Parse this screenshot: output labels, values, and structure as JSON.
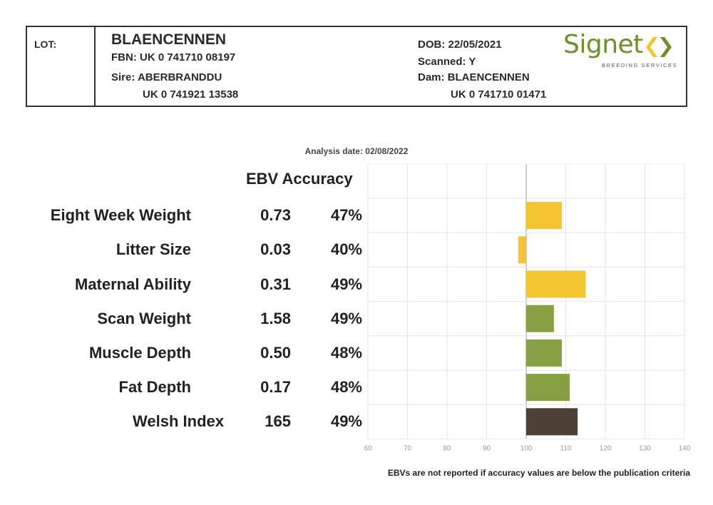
{
  "header": {
    "lot_label": "LOT:",
    "name": "BLAENCENNEN",
    "fbn": "FBN: UK 0 741710 08197",
    "sire": "Sire: ABERBRANDDU",
    "sire_id": "UK 0 741921 13538",
    "dob": "DOB: 22/05/2021",
    "scanned": "Scanned: Y",
    "dam": "Dam: BLAENCENNEN",
    "dam_id": "UK 0 741710 01471"
  },
  "logo": {
    "word": "Signet",
    "subtitle": "BREEDING SERVICES",
    "colors": {
      "green": "#6e8f2b",
      "yellow": "#f5c431"
    }
  },
  "analysis_date": "Analysis date: 02/08/2022",
  "column_header": "EBV Accuracy",
  "footnote": "EBVs are not reported if accuracy values are below the publication criteria",
  "chart_data": {
    "type": "bar",
    "orientation": "horizontal",
    "baseline": 100,
    "xlim": [
      60,
      140
    ],
    "xticks": [
      60,
      70,
      80,
      90,
      100,
      110,
      120,
      130,
      140
    ],
    "grid": true,
    "rows": [
      {
        "label": "Eight Week Weight",
        "ebv": "0.73",
        "accuracy": "47%",
        "value": 109,
        "color": "#f5c431"
      },
      {
        "label": "Litter Size",
        "ebv": "0.03",
        "accuracy": "40%",
        "value": 98,
        "color": "#f5c431"
      },
      {
        "label": "Maternal Ability",
        "ebv": "0.31",
        "accuracy": "49%",
        "value": 115,
        "color": "#f5c431"
      },
      {
        "label": "Scan Weight",
        "ebv": "1.58",
        "accuracy": "49%",
        "value": 107,
        "color": "#86a043"
      },
      {
        "label": "Muscle Depth",
        "ebv": "0.50",
        "accuracy": "48%",
        "value": 109,
        "color": "#86a043"
      },
      {
        "label": "Fat Depth",
        "ebv": "0.17",
        "accuracy": "48%",
        "value": 111,
        "color": "#86a043"
      },
      {
        "label": "Welsh Index",
        "ebv": "165",
        "accuracy": "49%",
        "value": 113,
        "color": "#4d4036"
      }
    ]
  }
}
